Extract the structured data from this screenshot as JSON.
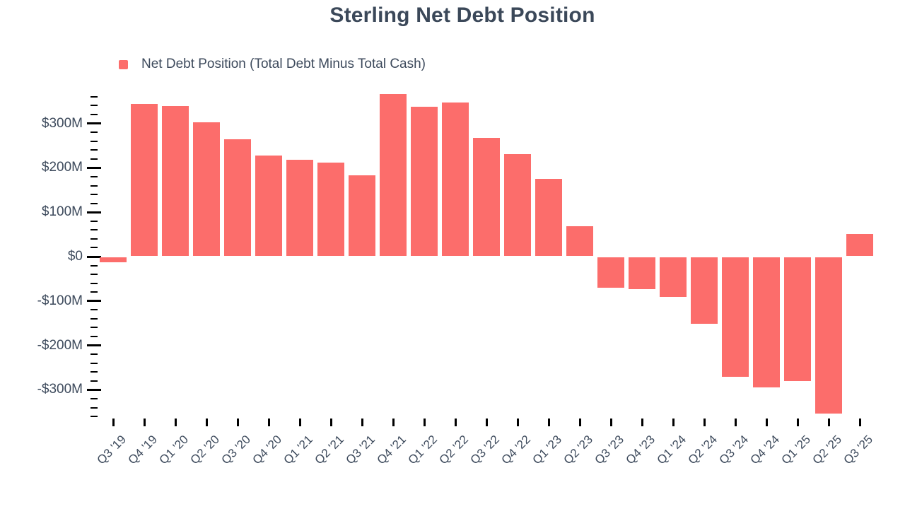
{
  "chart_data": {
    "type": "bar",
    "title": "Sterling Net Debt Position",
    "legend": {
      "label": "Net Debt Position (Total Debt Minus Total Cash)",
      "position": "top-left"
    },
    "categories": [
      "Q3 '19",
      "Q4 '19",
      "Q1 '20",
      "Q2 '20",
      "Q3 '20",
      "Q4 '20",
      "Q1 '21",
      "Q2 '21",
      "Q3 '21",
      "Q4 '21",
      "Q1 '22",
      "Q2 '22",
      "Q3 '22",
      "Q4 '22",
      "Q1 '23",
      "Q2 '23",
      "Q3 '23",
      "Q4 '23",
      "Q1 '24",
      "Q2 '24",
      "Q3 '24",
      "Q4 '24",
      "Q1 '25",
      "Q2 '25",
      "Q3 '25"
    ],
    "values_millions_usd": [
      -13,
      344,
      339,
      302,
      265,
      228,
      218,
      211,
      183,
      367,
      338,
      347,
      267,
      231,
      175,
      68,
      -70,
      -74,
      -90,
      -152,
      -270,
      -294,
      -280,
      -353,
      51
    ],
    "xlabel": "",
    "ylabel": "",
    "y_axis": {
      "tick_values": [
        300,
        200,
        100,
        0,
        -100,
        -200,
        -300
      ],
      "tick_labels": [
        "$300M",
        "$200M",
        "$100M",
        "$0",
        "-$100M",
        "-$200M",
        "-$300M"
      ],
      "minor_tick_step": 20,
      "minor_tick_range": [
        -360,
        360
      ],
      "ylim": [
        -375,
        375
      ]
    },
    "x_axis": {
      "label_angle_deg": -45
    },
    "grid": false,
    "colors": {
      "bar": "#fc6d6b",
      "text": "#3d4a5c",
      "tick": "#000000"
    }
  }
}
